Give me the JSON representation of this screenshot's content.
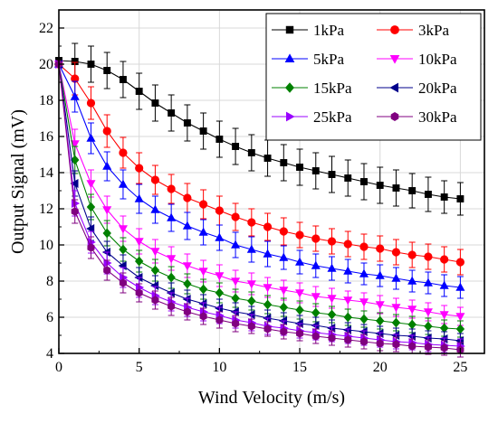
{
  "chart_data": {
    "type": "line",
    "title": "",
    "xlabel": "Wind Velocity (m/s)",
    "ylabel": "Output Signal (mV)",
    "xlim": [
      0,
      26.5
    ],
    "ylim": [
      4,
      23
    ],
    "xticks": [
      0,
      5,
      10,
      15,
      20,
      25
    ],
    "yticks": [
      4,
      6,
      8,
      10,
      12,
      14,
      16,
      18,
      20,
      22
    ],
    "grid": true,
    "legend_position": "top-right",
    "legend_columns": 2,
    "x": [
      0,
      1,
      2,
      3,
      4,
      5,
      6,
      7,
      8,
      9,
      10,
      11,
      12,
      13,
      14,
      15,
      16,
      17,
      18,
      19,
      20,
      21,
      22,
      23,
      24,
      25
    ],
    "series": [
      {
        "name": "1kPa",
        "color": "#000000",
        "marker": "square",
        "values": [
          20.2,
          20.15,
          20.0,
          19.65,
          19.15,
          18.5,
          17.85,
          17.3,
          16.75,
          16.3,
          15.85,
          15.45,
          15.1,
          14.8,
          14.55,
          14.3,
          14.1,
          13.9,
          13.7,
          13.5,
          13.3,
          13.15,
          13.0,
          12.8,
          12.65,
          12.55
        ],
        "error": [
          1.0,
          1.0,
          1.0,
          1.0,
          1.0,
          1.0,
          1.0,
          1.0,
          1.0,
          1.0,
          1.0,
          1.0,
          1.0,
          1.0,
          1.0,
          1.0,
          1.0,
          1.0,
          1.0,
          1.0,
          1.0,
          1.0,
          0.95,
          0.95,
          0.9,
          0.9
        ]
      },
      {
        "name": "3kPa",
        "color": "#ff0000",
        "marker": "circle",
        "values": [
          20.0,
          19.2,
          17.85,
          16.3,
          15.1,
          14.25,
          13.6,
          13.1,
          12.6,
          12.25,
          11.9,
          11.55,
          11.25,
          11.0,
          10.75,
          10.55,
          10.35,
          10.2,
          10.05,
          9.9,
          9.8,
          9.6,
          9.45,
          9.35,
          9.2,
          9.05
        ],
        "error": [
          0.9,
          0.9,
          0.9,
          0.9,
          0.85,
          0.85,
          0.8,
          0.8,
          0.8,
          0.8,
          0.8,
          0.75,
          0.75,
          0.75,
          0.75,
          0.7,
          0.7,
          0.7,
          0.7,
          0.7,
          0.7,
          0.7,
          0.7,
          0.7,
          0.7,
          0.7
        ]
      },
      {
        "name": "5kPa",
        "color": "#0000ff",
        "marker": "triangle-up",
        "values": [
          20.0,
          18.2,
          15.9,
          14.35,
          13.35,
          12.55,
          11.95,
          11.5,
          11.05,
          10.7,
          10.4,
          10.0,
          9.75,
          9.5,
          9.3,
          9.05,
          8.85,
          8.7,
          8.55,
          8.4,
          8.3,
          8.15,
          8.0,
          7.9,
          7.75,
          7.65
        ],
        "error": [
          0.9,
          0.85,
          0.85,
          0.8,
          0.8,
          0.8,
          0.75,
          0.75,
          0.75,
          0.7,
          0.7,
          0.7,
          0.7,
          0.7,
          0.65,
          0.65,
          0.65,
          0.65,
          0.65,
          0.6,
          0.6,
          0.6,
          0.6,
          0.6,
          0.6,
          0.6
        ]
      },
      {
        "name": "10kPa",
        "color": "#ff00ff",
        "marker": "triangle-down",
        "values": [
          20.0,
          15.6,
          13.4,
          11.95,
          10.9,
          10.2,
          9.65,
          9.25,
          8.85,
          8.55,
          8.3,
          8.0,
          7.85,
          7.65,
          7.5,
          7.35,
          7.15,
          7.05,
          6.95,
          6.85,
          6.7,
          6.55,
          6.45,
          6.3,
          6.15,
          6.05
        ],
        "error": [
          0.8,
          0.8,
          0.75,
          0.75,
          0.7,
          0.7,
          0.65,
          0.65,
          0.65,
          0.6,
          0.6,
          0.6,
          0.6,
          0.55,
          0.55,
          0.55,
          0.55,
          0.55,
          0.5,
          0.5,
          0.5,
          0.5,
          0.5,
          0.5,
          0.5,
          0.5
        ]
      },
      {
        "name": "15kPa",
        "color": "#008000",
        "marker": "diamond",
        "values": [
          20.0,
          14.7,
          12.1,
          10.65,
          9.75,
          9.1,
          8.6,
          8.2,
          7.85,
          7.55,
          7.35,
          7.05,
          6.9,
          6.7,
          6.55,
          6.4,
          6.25,
          6.15,
          6.0,
          5.9,
          5.8,
          5.7,
          5.6,
          5.5,
          5.4,
          5.35
        ],
        "error": [
          0.8,
          0.75,
          0.7,
          0.7,
          0.65,
          0.6,
          0.6,
          0.6,
          0.55,
          0.55,
          0.55,
          0.5,
          0.5,
          0.5,
          0.5,
          0.5,
          0.5,
          0.45,
          0.45,
          0.45,
          0.45,
          0.45,
          0.45,
          0.45,
          0.45,
          0.45
        ]
      },
      {
        "name": "20kPa",
        "color": "#00008b",
        "marker": "triangle-left",
        "values": [
          20.0,
          13.4,
          10.9,
          9.6,
          8.85,
          8.2,
          7.75,
          7.35,
          7.0,
          6.75,
          6.5,
          6.3,
          6.15,
          5.95,
          5.8,
          5.65,
          5.55,
          5.4,
          5.3,
          5.2,
          5.1,
          5.0,
          4.95,
          4.85,
          4.8,
          4.7
        ],
        "error": [
          0.75,
          0.7,
          0.65,
          0.6,
          0.6,
          0.55,
          0.55,
          0.55,
          0.5,
          0.5,
          0.5,
          0.5,
          0.45,
          0.45,
          0.45,
          0.45,
          0.45,
          0.45,
          0.4,
          0.4,
          0.4,
          0.4,
          0.4,
          0.4,
          0.4,
          0.4
        ]
      },
      {
        "name": "25kPa",
        "color": "#9900ff",
        "marker": "triangle-right",
        "values": [
          20.0,
          12.3,
          10.15,
          9.0,
          8.2,
          7.65,
          7.2,
          6.85,
          6.55,
          6.3,
          6.1,
          5.85,
          5.7,
          5.5,
          5.4,
          5.25,
          5.15,
          5.05,
          4.95,
          4.85,
          4.75,
          4.65,
          4.6,
          4.5,
          4.45,
          4.4
        ],
        "error": [
          0.7,
          0.7,
          0.6,
          0.6,
          0.55,
          0.55,
          0.5,
          0.5,
          0.5,
          0.5,
          0.45,
          0.45,
          0.45,
          0.45,
          0.4,
          0.4,
          0.4,
          0.4,
          0.4,
          0.4,
          0.4,
          0.4,
          0.4,
          0.4,
          0.4,
          0.4
        ]
      },
      {
        "name": "30kPa",
        "color": "#800080",
        "marker": "hexagon",
        "values": [
          20.0,
          11.85,
          9.85,
          8.6,
          7.9,
          7.35,
          6.95,
          6.6,
          6.3,
          6.05,
          5.85,
          5.65,
          5.5,
          5.35,
          5.2,
          5.1,
          4.95,
          4.85,
          4.75,
          4.65,
          4.55,
          4.5,
          4.4,
          4.35,
          4.3,
          4.2
        ],
        "error": [
          0.7,
          0.65,
          0.6,
          0.55,
          0.55,
          0.5,
          0.5,
          0.5,
          0.45,
          0.45,
          0.45,
          0.45,
          0.4,
          0.4,
          0.4,
          0.4,
          0.4,
          0.4,
          0.4,
          0.4,
          0.4,
          0.4,
          0.4,
          0.4,
          0.4,
          0.4
        ]
      }
    ]
  }
}
